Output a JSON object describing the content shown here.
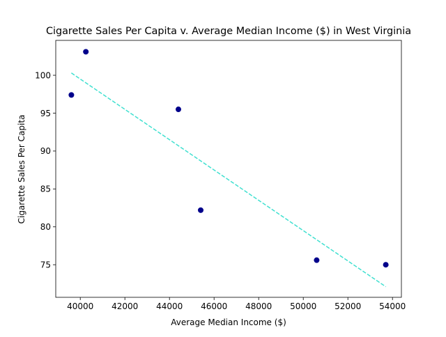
{
  "chart_data": {
    "type": "scatter",
    "title": "Cigarette Sales Per Capita v. Average Median Income ($) in West Virginia",
    "xlabel": "Average Median Income ($)",
    "ylabel": "Cigarette Sales Per Capita",
    "xlim": [
      38900,
      54400
    ],
    "ylim": [
      70.7,
      104.6
    ],
    "xticks": [
      40000,
      42000,
      44000,
      46000,
      48000,
      50000,
      52000,
      54000
    ],
    "yticks": [
      75,
      80,
      85,
      90,
      95,
      100
    ],
    "grid": false,
    "points": [
      {
        "x": 39600,
        "y": 97.4
      },
      {
        "x": 40250,
        "y": 103.1
      },
      {
        "x": 44400,
        "y": 95.5
      },
      {
        "x": 45400,
        "y": 82.2
      },
      {
        "x": 50600,
        "y": 75.6
      },
      {
        "x": 53700,
        "y": 75.0
      }
    ],
    "trendline": {
      "style": "dashed",
      "x": [
        39600,
        53700
      ],
      "y": [
        100.3,
        72.1
      ]
    },
    "colors": {
      "points": "#00008b",
      "trendline": "#40e0d0",
      "axes": "#000000"
    }
  }
}
